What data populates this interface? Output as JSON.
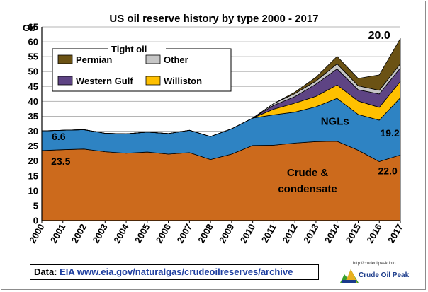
{
  "chart_data": {
    "type": "area",
    "stacked": true,
    "title": "US oil reserve history by type 2000 - 2017",
    "ylabel": "Gb",
    "xlabel": "",
    "ylim": [
      0,
      65
    ],
    "ytick_step": 5,
    "grid": true,
    "x": [
      "2000",
      "2001",
      "2002",
      "2003",
      "2004",
      "2005",
      "2006",
      "2007",
      "2008",
      "2009",
      "2010",
      "2011",
      "2012",
      "2013",
      "2014",
      "2015",
      "2016",
      "2017"
    ],
    "series": [
      {
        "key": "crude",
        "color": "#cc6a1c",
        "values": [
          23.5,
          23.8,
          24.0,
          23.1,
          22.6,
          23.0,
          22.3,
          22.8,
          20.5,
          22.3,
          25.2,
          25.3,
          26.0,
          26.5,
          26.6,
          23.6,
          19.8,
          22.0
        ]
      },
      {
        "key": "ngl",
        "color": "#2e83c3",
        "values": [
          6.6,
          6.5,
          6.5,
          6.2,
          6.5,
          6.7,
          6.9,
          7.5,
          7.7,
          8.5,
          9.2,
          10.2,
          10.4,
          11.7,
          14.4,
          12.0,
          13.9,
          19.2
        ]
      },
      {
        "key": "williston",
        "color": "#ffc000",
        "values": [
          0,
          0,
          0,
          0,
          0,
          0,
          0,
          0,
          0,
          0,
          0,
          1.9,
          3.0,
          3.5,
          4.5,
          4.5,
          4.3,
          5.5
        ]
      },
      {
        "key": "western_gulf",
        "color": "#5e4484",
        "values": [
          0,
          0,
          0,
          0,
          0,
          0,
          0,
          0,
          0,
          0,
          0,
          1.3,
          2.2,
          4.1,
          5.4,
          3.8,
          4.5,
          4.5
        ]
      },
      {
        "key": "other",
        "color": "#c6c6c6",
        "values": [
          0,
          0,
          0,
          0,
          0,
          0,
          0,
          0,
          0,
          0,
          0,
          0.6,
          1.0,
          1.0,
          1.7,
          1.3,
          1.2,
          1.4
        ]
      },
      {
        "key": "permian",
        "color": "#6b5214",
        "values": [
          0,
          0,
          0,
          0,
          0,
          0,
          0,
          0,
          0,
          0,
          0,
          0,
          0.5,
          1.3,
          2.5,
          2.5,
          5.2,
          8.5
        ]
      }
    ],
    "legend": {
      "title": "Tight oil",
      "placement": "top-left",
      "entries": [
        {
          "label": "Permian",
          "series": "permian"
        },
        {
          "label": "Other",
          "series": "other"
        },
        {
          "label": "Western Gulf",
          "series": "western_gulf"
        },
        {
          "label": "Williston",
          "series": "williston"
        }
      ]
    },
    "annotations": [
      {
        "text": "6.6",
        "x": 2000.8,
        "y": 27.1,
        "color": "#000000",
        "size": 14
      },
      {
        "text": "23.5",
        "x": 2000.9,
        "y": 18.8,
        "color": "#000000",
        "size": 14
      },
      {
        "text": "NGLs",
        "x": 2013.9,
        "y": 32.2,
        "color": "#000000",
        "size": 15
      },
      {
        "text": "19.2",
        "x": 2016.5,
        "y": 28.2,
        "color": "#000000",
        "size": 14
      },
      {
        "text": "Crude &",
        "x": 2012.6,
        "y": 15.0,
        "color": "#000000",
        "size": 15
      },
      {
        "text": "condensate",
        "x": 2012.6,
        "y": 9.5,
        "color": "#000000",
        "size": 15
      },
      {
        "text": "22.0",
        "x": 2016.4,
        "y": 15.5,
        "color": "#000000",
        "size": 14
      },
      {
        "text": "20.0",
        "x": 2016.0,
        "y": 61.0,
        "color": "#000000",
        "size": 16
      }
    ]
  },
  "footer": {
    "prefix": "Data: ",
    "link": "EIA www.eia.gov/naturalgas/crudeoilreserves/archive"
  },
  "logo": {
    "url": "http://crudeoilpeak.info",
    "name": "Crude Oil Peak"
  }
}
